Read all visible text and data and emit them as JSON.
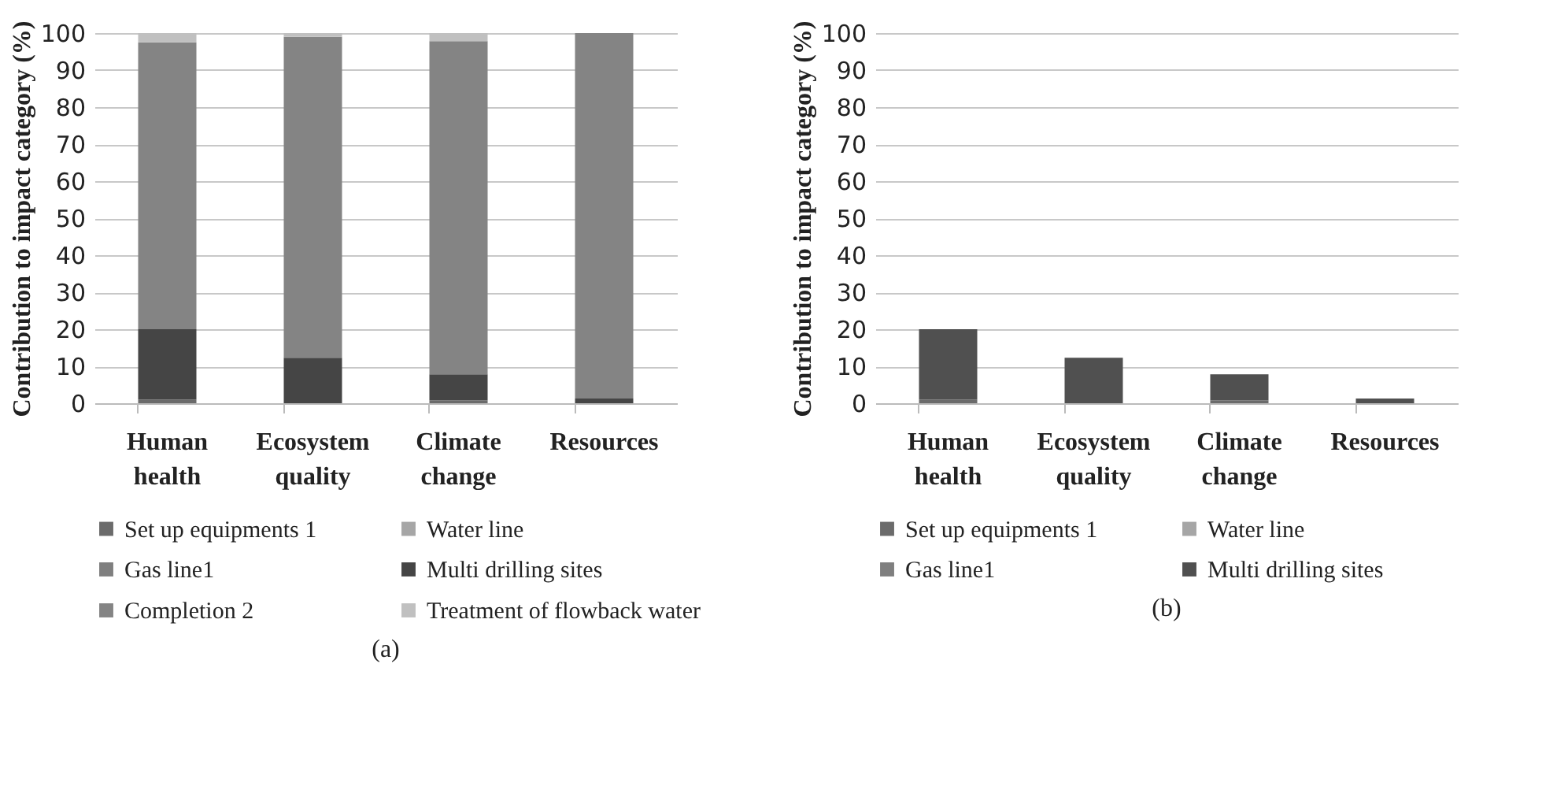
{
  "chart_data": [
    {
      "type": "bar",
      "stacked": true,
      "ylabel": "Contribution to impact category (%)",
      "categories": [
        "Human health",
        "Ecosystem quality",
        "Climate change",
        "Resources"
      ],
      "ylim": [
        0,
        100
      ],
      "yticks": [
        0,
        10,
        20,
        30,
        40,
        50,
        60,
        70,
        80,
        90,
        100
      ],
      "grid": "y",
      "legend": "bottom",
      "annotations": [
        "(a)"
      ],
      "series": [
        {
          "name": "Set up equipments 1",
          "color": "#6b6b6b",
          "values": [
            1,
            0,
            0.8,
            0
          ]
        },
        {
          "name": "Water line",
          "color": "#a6a6a6",
          "values": [
            0,
            0,
            0,
            0
          ]
        },
        {
          "name": "Gas line1",
          "color": "#7f7f7f",
          "values": [
            0,
            0,
            0,
            0
          ]
        },
        {
          "name": "Multi drilling sites",
          "color": "#454545",
          "values": [
            19,
            12.3,
            7,
            1.3
          ]
        },
        {
          "name": "Completion 2",
          "color": "#848484",
          "values": [
            77.5,
            86.7,
            90,
            98.7
          ]
        },
        {
          "name": "Treatment of flowback water",
          "color": "#c0c0c0",
          "values": [
            2.5,
            1,
            2.2,
            0
          ]
        }
      ]
    },
    {
      "type": "bar",
      "stacked": true,
      "ylabel": "Contribution to impact category (%)",
      "categories": [
        "Human health",
        "Ecosystem quality",
        "Climate change",
        "Resources"
      ],
      "ylim": [
        0,
        100
      ],
      "yticks": [
        0,
        10,
        20,
        30,
        40,
        50,
        60,
        70,
        80,
        90,
        100
      ],
      "grid": "y",
      "legend": "bottom",
      "annotations": [
        "(b)"
      ],
      "series": [
        {
          "name": "Set up equipments 1",
          "color": "#6b6b6b",
          "values": [
            1,
            0,
            0.8,
            0
          ]
        },
        {
          "name": "Water line",
          "color": "#a6a6a6",
          "values": [
            0,
            0,
            0,
            0
          ]
        },
        {
          "name": "Gas line1",
          "color": "#7f7f7f",
          "values": [
            0,
            0,
            0,
            0
          ]
        },
        {
          "name": "Multi drilling sites",
          "color": "#505050",
          "values": [
            19,
            12.3,
            7,
            1.3
          ]
        }
      ]
    }
  ]
}
